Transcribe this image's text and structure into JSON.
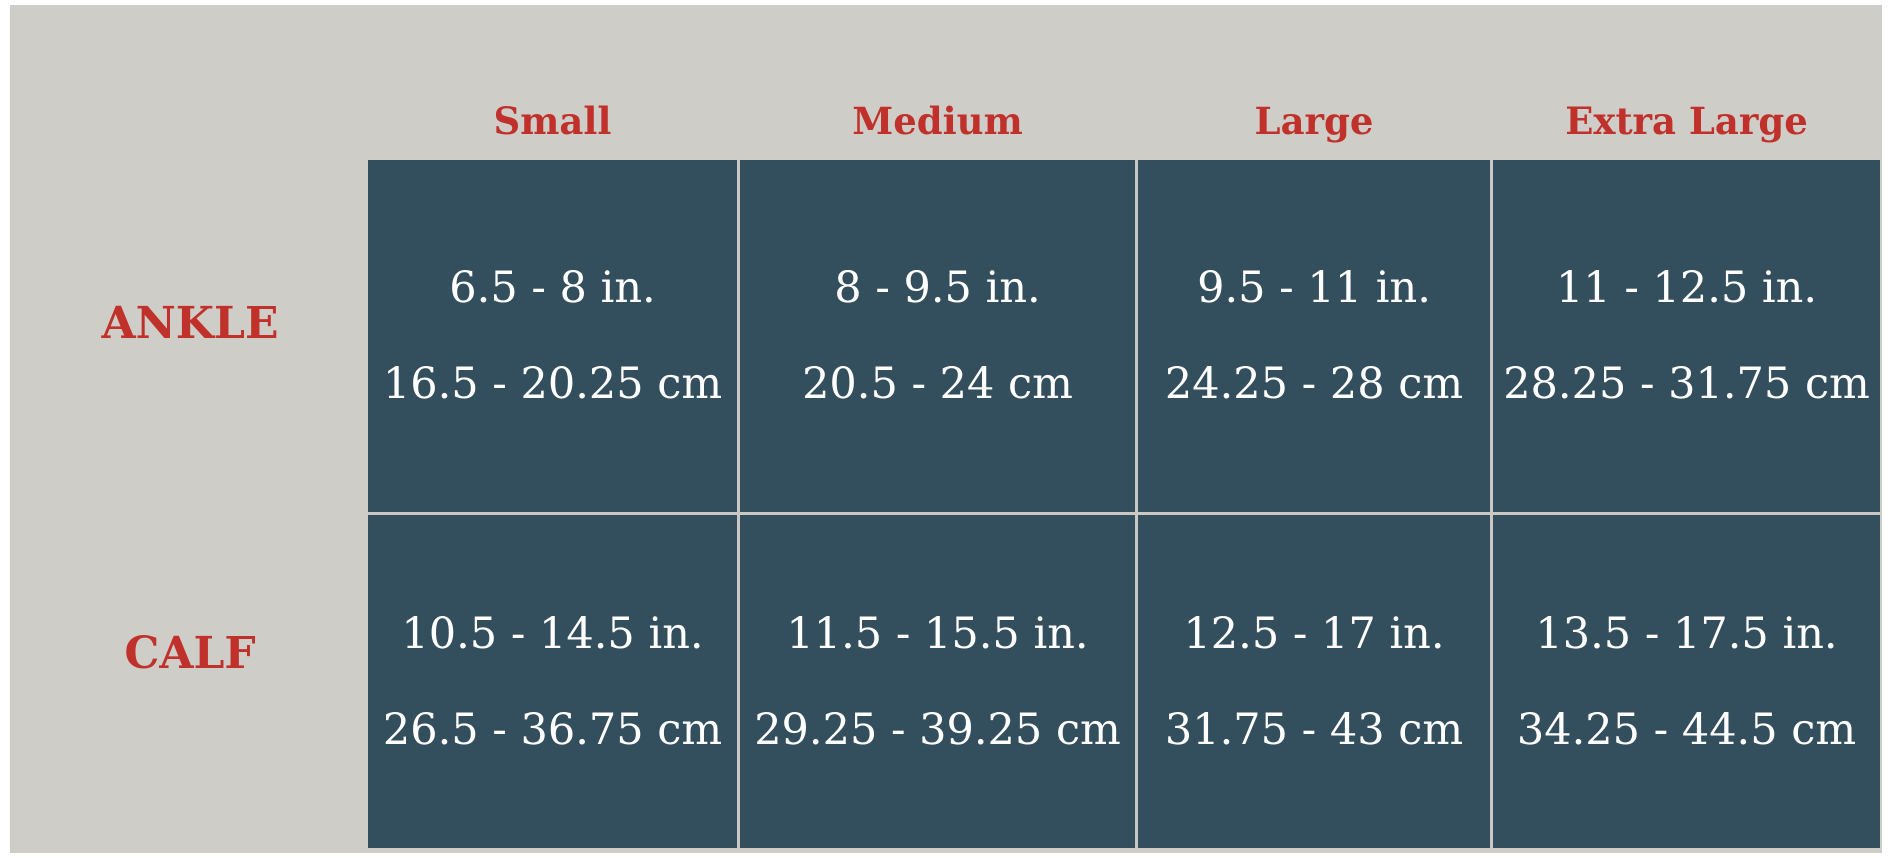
{
  "columns": [
    "Small",
    "Medium",
    "Large",
    "Extra Large"
  ],
  "rows": [
    {
      "label": "ANKLE",
      "cells": [
        {
          "in": "6.5 - 8 in.",
          "cm": "16.5 - 20.25 cm"
        },
        {
          "in": "8 - 9.5 in.",
          "cm": "20.5 - 24 cm"
        },
        {
          "in": "9.5 - 11 in.",
          "cm": "24.25 - 28 cm"
        },
        {
          "in": "11 - 12.5 in.",
          "cm": "28.25 - 31.75 cm"
        }
      ]
    },
    {
      "label": "CALF",
      "cells": [
        {
          "in": "10.5 - 14.5 in.",
          "cm": "26.5 - 36.75 cm"
        },
        {
          "in": "11.5 - 15.5 in.",
          "cm": "29.25 - 39.25 cm"
        },
        {
          "in": "12.5 - 17 in.",
          "cm": "31.75 - 43 cm"
        },
        {
          "in": "13.5 - 17.5 in.",
          "cm": "34.25 - 44.5 cm"
        }
      ]
    }
  ],
  "colors": {
    "background": "#cfcdc8",
    "cell": "#334e5c",
    "accent": "#c0312b",
    "cell_text": "#ffffff"
  }
}
